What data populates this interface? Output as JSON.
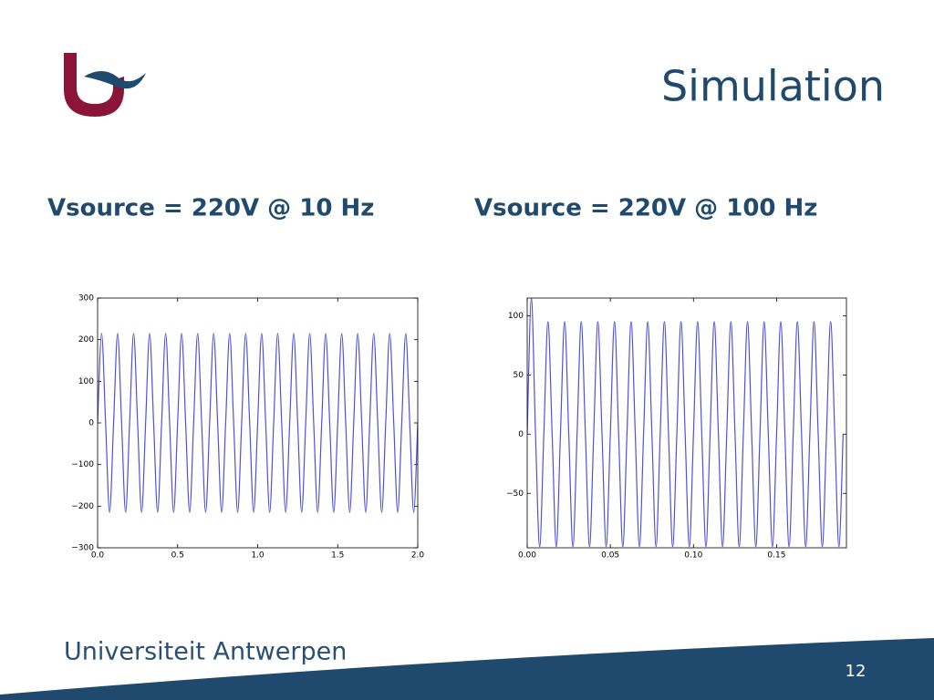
{
  "slide": {
    "title": "Simulation",
    "university": "Universiteit Antwerpen",
    "page_number": 12
  },
  "chart_data": [
    {
      "type": "line",
      "title": "Vsource = 220V @ 10 Hz",
      "color": "#4f4fe0",
      "xlim": [
        0,
        2
      ],
      "ylim": [
        -300,
        300
      ],
      "xticks": [
        {
          "value": 0,
          "label": "0.0"
        },
        {
          "value": 0.5,
          "label": "0.5"
        },
        {
          "value": 1,
          "label": "1.0"
        },
        {
          "value": 1.5,
          "label": "1.5"
        },
        {
          "value": 2,
          "label": "2.0"
        }
      ],
      "yticks": [
        {
          "value": -300,
          "label": "−300"
        },
        {
          "value": -200,
          "label": "−200"
        },
        {
          "value": -100,
          "label": "−100"
        },
        0,
        100,
        200,
        300
      ],
      "x": [
        0,
        0.025,
        0.05,
        0.075,
        0.1,
        0.125,
        0.15,
        0.175,
        0.2,
        0.225,
        0.25,
        0.275,
        0.3,
        0.325,
        0.35,
        0.375,
        0.4,
        0.425,
        0.45,
        0.475,
        0.5,
        0.525,
        0.55,
        0.575,
        0.6,
        0.625,
        0.65,
        0.675,
        0.7,
        0.725,
        0.75,
        0.775,
        0.8,
        0.825,
        0.85,
        0.875,
        0.9,
        0.925,
        0.95,
        0.975,
        1,
        1.025,
        1.05,
        1.075,
        1.1,
        1.125,
        1.15,
        1.175,
        1.2,
        1.225,
        1.25,
        1.275,
        1.3,
        1.325,
        1.35,
        1.375,
        1.4,
        1.425,
        1.45,
        1.475,
        1.5,
        1.525,
        1.55,
        1.575,
        1.6,
        1.625,
        1.65,
        1.675,
        1.7,
        1.725,
        1.75,
        1.775,
        1.8,
        1.825,
        1.85,
        1.875,
        1.9,
        1.925,
        1.95,
        1.975,
        2
      ],
      "values": [
        0,
        215,
        0,
        -215,
        0,
        215,
        0,
        -215,
        0,
        215,
        0,
        -215,
        0,
        215,
        0,
        -215,
        0,
        215,
        0,
        -215,
        0,
        215,
        0,
        -215,
        0,
        215,
        0,
        -215,
        0,
        215,
        0,
        -215,
        0,
        215,
        0,
        -215,
        0,
        215,
        0,
        -215,
        0,
        215,
        0,
        -215,
        0,
        215,
        0,
        -215,
        0,
        215,
        0,
        -215,
        0,
        215,
        0,
        -215,
        0,
        215,
        0,
        -215,
        0,
        215,
        0,
        -215,
        0,
        215,
        0,
        -215,
        0,
        215,
        0,
        -215,
        0,
        215,
        0,
        -215,
        0,
        215,
        0,
        -215,
        0
      ]
    },
    {
      "type": "line",
      "title": "Vsource = 220V @ 100 Hz",
      "color": "#4f4fe0",
      "xlim": [
        0,
        0.192
      ],
      "ylim": [
        -96,
        115
      ],
      "xticks": [
        {
          "value": 0,
          "label": "0.00"
        },
        {
          "value": 0.05,
          "label": "0.05"
        },
        {
          "value": 0.1,
          "label": "0.10"
        },
        {
          "value": 0.15,
          "label": "0.15"
        }
      ],
      "yticks": [
        {
          "value": -50,
          "label": "−50"
        },
        0,
        50,
        100
      ],
      "x": [
        0,
        0.0025,
        0.005,
        0.0075,
        0.01,
        0.0125,
        0.015,
        0.0175,
        0.02,
        0.0225,
        0.025,
        0.0275,
        0.03,
        0.0325,
        0.035,
        0.0375,
        0.04,
        0.0425,
        0.045,
        0.0475,
        0.05,
        0.0525,
        0.055,
        0.0575,
        0.06,
        0.0625,
        0.065,
        0.0675,
        0.07,
        0.0725,
        0.075,
        0.0775,
        0.08,
        0.0825,
        0.085,
        0.0875,
        0.09,
        0.0925,
        0.095,
        0.0975,
        0.1,
        0.1025,
        0.105,
        0.1075,
        0.11,
        0.1125,
        0.115,
        0.1175,
        0.12,
        0.1225,
        0.125,
        0.1275,
        0.13,
        0.1325,
        0.135,
        0.1375,
        0.14,
        0.1425,
        0.145,
        0.1475,
        0.15,
        0.1525,
        0.155,
        0.1575,
        0.16,
        0.1625,
        0.165,
        0.1675,
        0.17,
        0.1725,
        0.175,
        0.1775,
        0.18,
        0.1825,
        0.185,
        0.1875,
        0.19
      ],
      "values": [
        0,
        115,
        0,
        -95,
        0,
        95,
        0,
        -95,
        0,
        95,
        0,
        -95,
        0,
        95,
        0,
        -95,
        0,
        95,
        0,
        -95,
        0,
        95,
        0,
        -95,
        0,
        95,
        0,
        -95,
        0,
        95,
        0,
        -95,
        0,
        95,
        0,
        -95,
        0,
        95,
        0,
        -95,
        0,
        95,
        0,
        -95,
        0,
        95,
        0,
        -95,
        0,
        95,
        0,
        -95,
        0,
        95,
        0,
        -95,
        0,
        95,
        0,
        -95,
        0,
        95,
        0,
        -95,
        0,
        95,
        0,
        -95,
        0,
        95,
        0,
        -95,
        0,
        95,
        0,
        -95,
        0
      ]
    }
  ]
}
